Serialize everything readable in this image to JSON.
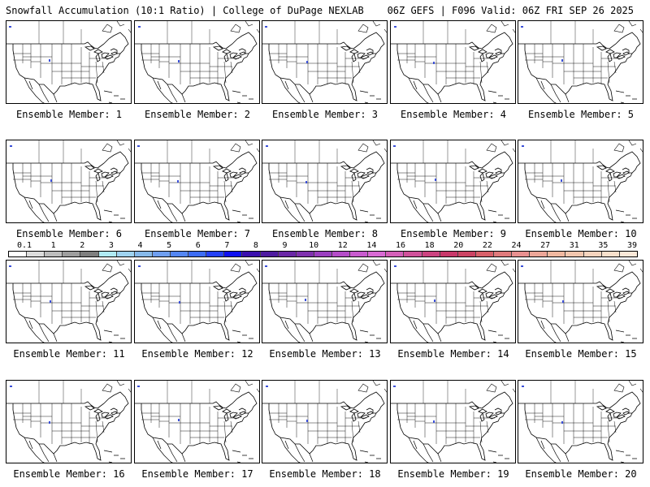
{
  "header": {
    "left": "Snowfall Accumulation (10:1 Ratio) | College of DuPage NEXLAB",
    "right": "06Z GEFS | F096 Valid: 06Z FRI SEP 26 2025"
  },
  "panels": [
    {
      "label": "Ensemble Member: 1"
    },
    {
      "label": "Ensemble Member: 2"
    },
    {
      "label": "Ensemble Member: 3"
    },
    {
      "label": "Ensemble Member: 4"
    },
    {
      "label": "Ensemble Member: 5"
    },
    {
      "label": "Ensemble Member: 6"
    },
    {
      "label": "Ensemble Member: 7"
    },
    {
      "label": "Ensemble Member: 8"
    },
    {
      "label": "Ensemble Member: 9"
    },
    {
      "label": "Ensemble Member: 10"
    },
    {
      "label": "Ensemble Member: 11"
    },
    {
      "label": "Ensemble Member: 12"
    },
    {
      "label": "Ensemble Member: 13"
    },
    {
      "label": "Ensemble Member: 14"
    },
    {
      "label": "Ensemble Member: 15"
    },
    {
      "label": "Ensemble Member: 16"
    },
    {
      "label": "Ensemble Member: 17"
    },
    {
      "label": "Ensemble Member: 18"
    },
    {
      "label": "Ensemble Member: 19"
    },
    {
      "label": "Ensemble Member: 20"
    }
  ],
  "colorbar": {
    "ticks": [
      "0.1",
      "1",
      "2",
      "3",
      "4",
      "5",
      "6",
      "7",
      "8",
      "9",
      "10",
      "12",
      "14",
      "16",
      "18",
      "20",
      "22",
      "24",
      "27",
      "31",
      "35",
      "39"
    ],
    "colors": [
      "#ffffff",
      "#dcdcdc",
      "#bdbdbd",
      "#9e9e9e",
      "#7f7f7f",
      "#b0eaf4",
      "#9fd3f0",
      "#86b9ea",
      "#6f9ff0",
      "#5486f2",
      "#3c6cf4",
      "#2440f6",
      "#0f10f0",
      "#3a0fae",
      "#4e1aa0",
      "#6a27a6",
      "#7f31ae",
      "#9a3ec0",
      "#b44cc8",
      "#c85bcf",
      "#d86ad4",
      "#d45fb8",
      "#d0519a",
      "#cc4380",
      "#c8386a",
      "#cc4464",
      "#d8606a",
      "#e07a7c",
      "#e89090",
      "#eca698",
      "#f0b8a0",
      "#f2c6ae",
      "#f6d4be",
      "#f8e0cc",
      "#fbe8d8"
    ]
  },
  "snow_color": "#3a4fd8"
}
